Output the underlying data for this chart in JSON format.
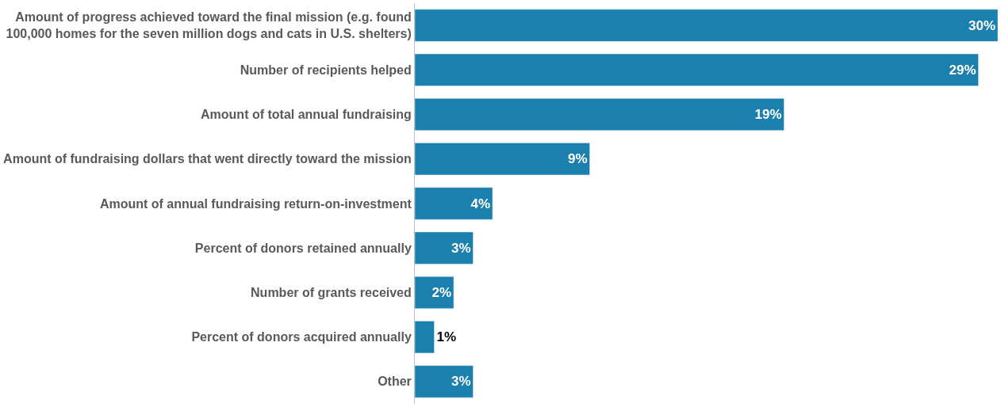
{
  "chart_data": {
    "type": "bar",
    "orientation": "horizontal",
    "categories": [
      "Amount of progress achieved toward the final mission (e.g. found 100,000 homes for the seven million dogs and cats in U.S. shelters)",
      "Number of recipients helped",
      "Amount of total annual fundraising",
      "Amount of fundraising dollars that went directly toward the mission",
      "Amount of annual fundraising return-on-investment",
      "Percent of donors retained annually",
      "Number of grants received",
      "Percent of donors acquired annually",
      "Other"
    ],
    "values": [
      30,
      29,
      19,
      9,
      4,
      3,
      2,
      1,
      3
    ],
    "value_labels": [
      "30%",
      "29%",
      "19%",
      "9%",
      "4%",
      "3%",
      "2%",
      "1%",
      "3%"
    ],
    "color": "#1b80ad"
  }
}
